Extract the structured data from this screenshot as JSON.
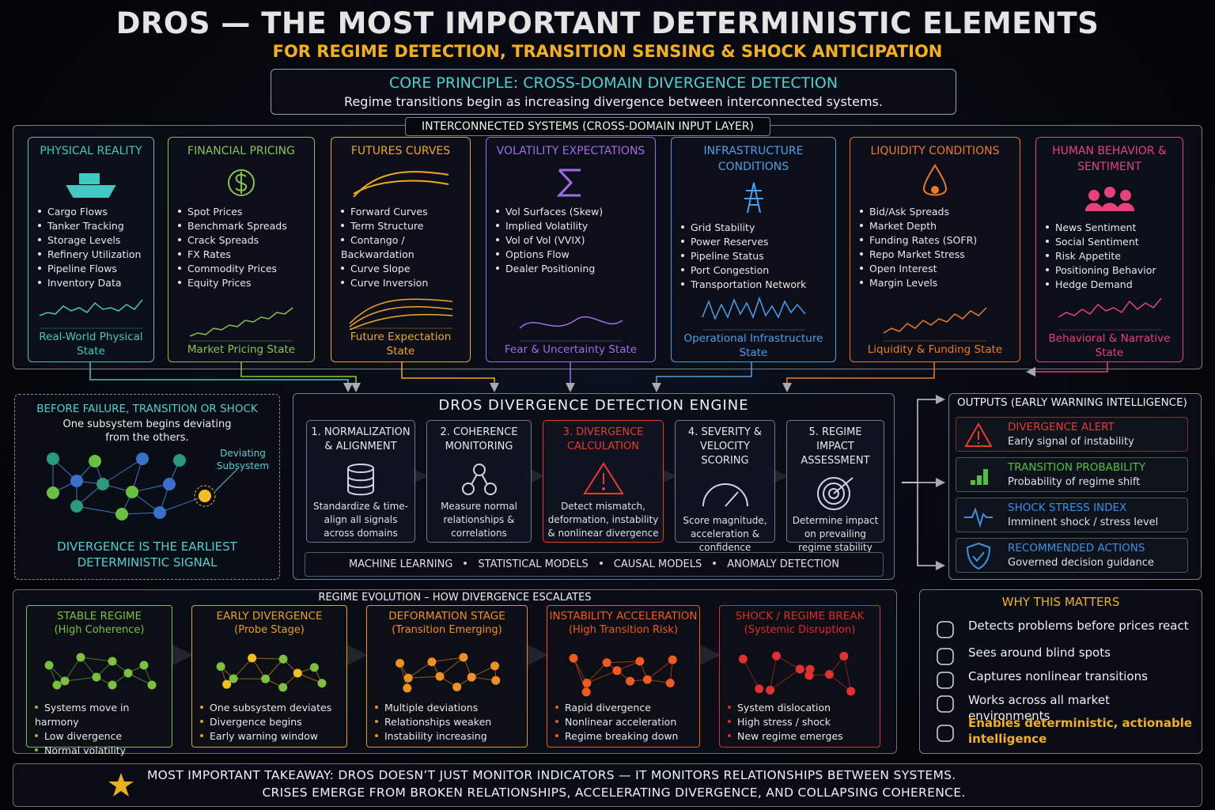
{
  "header": {
    "title": "DROS — THE MOST IMPORTANT DETERMINISTIC ELEMENTS",
    "subtitle": "FOR REGIME DETECTION, TRANSITION SENSING & SHOCK ANTICIPATION"
  },
  "core": {
    "title": "CORE PRINCIPLE: CROSS-DOMAIN DIVERGENCE DETECTION",
    "text": "Regime transitions begin as increasing divergence between interconnected  systems."
  },
  "input_layer": {
    "title": "INTERCONNECTED SYSTEMS (CROSS-DOMAIN INPUT LAYER)",
    "panels": [
      {
        "title": "PHYSICAL REALITY",
        "items": [
          "Cargo Flows",
          "Tanker Tracking",
          "Storage Levels",
          "Refinery Utilization",
          "Pipeline Flows",
          "Inventory Data"
        ],
        "footer": "Real-World Physical State"
      },
      {
        "title": "FINANCIAL PRICING",
        "items": [
          "Spot Prices",
          "Benchmark Spreads",
          "Crack Spreads",
          "FX Rates",
          "Commodity Prices",
          "Equity Prices"
        ],
        "footer": "Market Pricing State"
      },
      {
        "title": "FUTURES CURVES",
        "items": [
          "Forward Curves",
          "Term Structure",
          "Contango / Backwardation",
          "Curve Slope",
          "Curve Inversion"
        ],
        "footer": "Future Expectation State"
      },
      {
        "title": "VOLATILITY EXPECTATIONS",
        "items": [
          "Vol Surfaces (Skew)",
          "Implied Volatility",
          "Vol of Vol (VVIX)",
          "Options Flow",
          "Dealer Positioning"
        ],
        "footer": "Fear & Uncertainty State"
      },
      {
        "title": "INFRASTRUCTURE CONDITIONS",
        "items": [
          "Grid Stability",
          "Power Reserves",
          "Pipeline Status",
          "Port Congestion",
          "Transportation Network"
        ],
        "footer": "Operational Infrastructure State"
      },
      {
        "title": "LIQUIDITY CONDITIONS",
        "items": [
          "Bid/Ask Spreads",
          "Market Depth",
          "Funding Rates (SOFR)",
          "Repo Market Stress",
          "Open Interest",
          "Margin Levels"
        ],
        "footer": "Liquidity & Funding State"
      },
      {
        "title": "HUMAN BEHAVIOR & SENTIMENT",
        "items": [
          "News Sentiment",
          "Social Sentiment",
          "Risk Appetite",
          "Positioning Behavior",
          "Hedge Demand"
        ],
        "footer": "Behavioral & Narrative State"
      }
    ]
  },
  "before": {
    "title": "BEFORE FAILURE, TRANSITION OR SHOCK",
    "text": "One subsystem begins deviating from the others.",
    "deviating_label": "Deviating Subsystem",
    "bottom": "DIVERGENCE IS THE EARLIEST DETERMINISTIC SIGNAL"
  },
  "engine": {
    "title": "DROS DIVERGENCE DETECTION ENGINE",
    "steps": [
      {
        "title": "1. NORMALIZATION & ALIGNMENT",
        "text": "Standardize & time-align all signals across domains"
      },
      {
        "title": "2. COHERENCE MONITORING",
        "text": "Measure normal relationships & correlations"
      },
      {
        "title": "3. DIVERGENCE CALCULATION",
        "text": "Detect mismatch, deformation, instability & nonlinear divergence"
      },
      {
        "title": "4. SEVERITY & VELOCITY SCORING",
        "text": "Score magnitude, acceleration & confidence"
      },
      {
        "title": "5. REGIME IMPACT ASSESSMENT",
        "text": "Determine impact on prevailing regime stability"
      }
    ],
    "methods": [
      "MACHINE LEARNING",
      "STATISTICAL MODELS",
      "CAUSAL MODELS",
      "ANOMALY DETECTION"
    ]
  },
  "outputs": {
    "title": "OUTPUTS (EARLY WARNING INTELLIGENCE)",
    "items": [
      {
        "title": "DIVERGENCE ALERT",
        "text": "Early signal of instability"
      },
      {
        "title": "TRANSITION PROBABILITY",
        "text": "Probability of regime shift"
      },
      {
        "title": "SHOCK STRESS INDEX",
        "text": "Imminent shock / stress level"
      },
      {
        "title": "RECOMMENDED ACTIONS",
        "text": "Governed decision guidance"
      }
    ]
  },
  "evolution": {
    "title": "REGIME EVOLUTION – HOW DIVERGENCE ESCALATES",
    "stages": [
      {
        "title": "STABLE REGIME",
        "subtitle": "(High Coherence)",
        "items": [
          "Systems move in harmony",
          "Low divergence",
          "Normal volatility"
        ]
      },
      {
        "title": "EARLY DIVERGENCE",
        "subtitle": "(Probe Stage)",
        "items": [
          "One subsystem deviates",
          "Divergence begins",
          "Early warning window"
        ]
      },
      {
        "title": "DEFORMATION STAGE",
        "subtitle": "(Transition Emerging)",
        "items": [
          "Multiple deviations",
          "Relationships weaken",
          "Instability increasing"
        ]
      },
      {
        "title": "INSTABILITY ACCELERATION",
        "subtitle": "(High Transition Risk)",
        "items": [
          "Rapid divergence",
          "Nonlinear acceleration",
          "Regime breaking down"
        ]
      },
      {
        "title": "SHOCK / REGIME BREAK",
        "subtitle": "(Systemic Disruption)",
        "items": [
          "System dislocation",
          "High stress / shock",
          "New regime emerges"
        ]
      }
    ]
  },
  "why": {
    "title": "WHY THIS MATTERS",
    "items": [
      "Detects problems before prices react",
      "Sees around blind spots",
      "Captures nonlinear transitions",
      "Works across all market environments",
      "Enables deterministic, actionable intelligence"
    ]
  },
  "takeaway": {
    "line1": "MOST IMPORTANT TAKEAWAY: DROS DOESN’T JUST MONITOR INDICATORS — IT MONITORS RELATIONSHIPS BETWEEN SYSTEMS.",
    "line2": "CRISES EMERGE FROM BROKEN RELATIONSHIPS, ACCELERATING DIVERGENCE, AND COLLAPSING COHERENCE."
  }
}
